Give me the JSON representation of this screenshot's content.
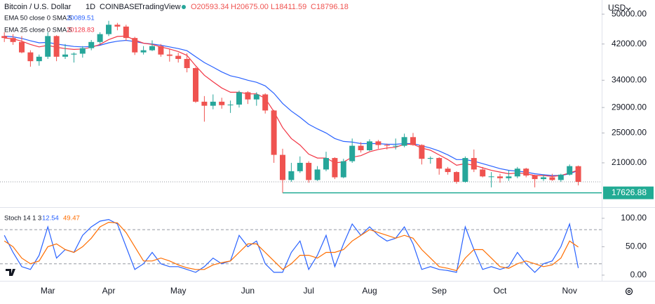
{
  "chart_data": [
    {
      "type": "candlestick",
      "title": "Bitcoin / U.S. Dollar",
      "interval": "1D",
      "exchange": "COINBASE",
      "source": "TradingView",
      "ohlc_labels": [
        "O20593.34",
        "H20675.00",
        "L18411.59",
        "C18796.18"
      ],
      "currency": "USD",
      "categories": [
        null,
        null,
        null,
        null,
        null,
        "Mar",
        null,
        null,
        null,
        null,
        null,
        null,
        "Apr",
        null,
        null,
        null,
        null,
        null,
        null,
        null,
        "May",
        null,
        null,
        null,
        null,
        null,
        null,
        null,
        "Jun",
        null,
        null,
        null,
        null,
        null,
        null,
        "Jul",
        null,
        null,
        null,
        null,
        null,
        null,
        "Aug",
        null,
        null,
        null,
        null,
        null,
        null,
        null,
        "Sep",
        null,
        null,
        null,
        null,
        null,
        null,
        "Oct",
        null,
        null,
        null,
        null,
        null,
        null,
        null,
        "Nov",
        null
      ],
      "open": [
        44000,
        43500,
        42500,
        40000,
        38000,
        39000,
        44000,
        39000,
        39500,
        39700,
        41000,
        42500,
        44500,
        47000,
        46500,
        43500,
        40000,
        40500,
        41500,
        39500,
        39200,
        38500,
        36500,
        30000,
        29300,
        30000,
        29400,
        29500,
        31700,
        30400,
        31300,
        28500,
        22000,
        19000,
        20000,
        21000,
        19000,
        20200,
        21600,
        19300,
        21200,
        23200,
        22600,
        23800,
        23300,
        23200,
        23200,
        24400,
        23300,
        21500,
        21600,
        20300,
        19900,
        18800,
        21600,
        20200,
        19400,
        19400,
        19200,
        19400,
        20300,
        19500,
        19100,
        19300,
        19000,
        19600,
        20593.34
      ],
      "high": [
        45000,
        44500,
        44000,
        40500,
        39500,
        45000,
        44200,
        42000,
        40000,
        41500,
        43000,
        45000,
        48100,
        47500,
        47000,
        43800,
        41500,
        42900,
        42000,
        40800,
        39900,
        39800,
        36700,
        31000,
        31300,
        30700,
        30200,
        32000,
        31900,
        31700,
        31500,
        28600,
        22800,
        21000,
        21800,
        21200,
        20600,
        22400,
        21700,
        21500,
        24200,
        23700,
        24100,
        24000,
        23500,
        24200,
        24900,
        25000,
        23400,
        21800,
        21700,
        20500,
        20000,
        21800,
        22700,
        20500,
        19900,
        19700,
        20100,
        20500,
        20400,
        19600,
        19600,
        19700,
        19700,
        20800,
        20675
      ],
      "low": [
        42500,
        41800,
        39800,
        36800,
        37000,
        38500,
        38000,
        38500,
        37700,
        38800,
        40500,
        42000,
        44000,
        45500,
        42800,
        39400,
        39500,
        40300,
        39000,
        37900,
        37700,
        35600,
        29800,
        26700,
        28700,
        28800,
        28100,
        29000,
        29600,
        29300,
        28000,
        21000,
        17626.88,
        18800,
        19800,
        18700,
        18900,
        20000,
        19100,
        19200,
        21000,
        22300,
        22500,
        22800,
        22700,
        22700,
        23000,
        23200,
        20800,
        20900,
        19600,
        19600,
        18600,
        18700,
        19900,
        19300,
        18200,
        18700,
        18900,
        19200,
        19300,
        18200,
        18900,
        18900,
        18800,
        19500,
        18411.59
      ],
      "close": [
        43500,
        42500,
        40000,
        38000,
        39000,
        44000,
        39000,
        39500,
        39700,
        41000,
        42500,
        44500,
        47000,
        46500,
        43500,
        40000,
        40500,
        41500,
        39500,
        39200,
        38500,
        36500,
        30000,
        29300,
        30000,
        29400,
        29500,
        31700,
        30400,
        31300,
        28500,
        22000,
        19000,
        20000,
        21000,
        19000,
        20200,
        21600,
        19300,
        21200,
        23200,
        22600,
        23800,
        23300,
        23200,
        23200,
        24400,
        23300,
        21500,
        21600,
        20300,
        19900,
        18800,
        21600,
        20200,
        19400,
        19400,
        19200,
        19400,
        20300,
        19500,
        19100,
        19300,
        19000,
        19600,
        20600,
        18796.18
      ],
      "up_color": "#26a69a",
      "down_color": "#ef5350",
      "series": [
        {
          "name": "EMA 50 close 0 SMA 5",
          "color": "#2962ff",
          "last_label": "20089.51",
          "values": [
            44000,
            43800,
            43400,
            42800,
            42300,
            42400,
            42000,
            41700,
            41400,
            41300,
            41400,
            41700,
            42300,
            42700,
            42900,
            42600,
            42200,
            42000,
            41700,
            41300,
            40900,
            40400,
            39000,
            37700,
            36700,
            35700,
            34900,
            34500,
            34000,
            33600,
            32900,
            31500,
            29700,
            28400,
            27400,
            26300,
            25600,
            25000,
            24200,
            23800,
            23700,
            23500,
            23500,
            23500,
            23400,
            23400,
            23500,
            23500,
            23200,
            22900,
            22500,
            22000,
            21400,
            21400,
            21200,
            20900,
            20600,
            20300,
            20100,
            20000,
            19900,
            19700,
            19600,
            19500,
            19500,
            19700,
            20089.51
          ]
        },
        {
          "name": "EMA 25 close 0 SMA 5",
          "color": "#f23645",
          "last_label": "20128.83",
          "values": [
            43500,
            43300,
            42700,
            41900,
            41300,
            41700,
            41200,
            40900,
            40700,
            40800,
            41200,
            41900,
            43100,
            43900,
            44000,
            43000,
            42200,
            41900,
            41300,
            40800,
            40200,
            39300,
            37000,
            35000,
            33700,
            32500,
            31700,
            31700,
            31400,
            31400,
            30600,
            28300,
            25800,
            24200,
            23300,
            22100,
            21600,
            21600,
            21000,
            21100,
            21700,
            21900,
            22400,
            22700,
            22900,
            23000,
            23400,
            23400,
            22900,
            22600,
            22000,
            21400,
            20700,
            20900,
            20700,
            20400,
            20100,
            19900,
            19700,
            19800,
            19700,
            19500,
            19500,
            19400,
            19500,
            19800,
            20128.83
          ]
        }
      ],
      "ylim": [
        16420,
        54300
      ],
      "log_scale": true,
      "yticks": [
        {
          "value": 50000,
          "label": "50000.00"
        },
        {
          "value": 42000,
          "label": "42000.00"
        },
        {
          "value": 34000,
          "label": "34000.00"
        },
        {
          "value": 29000,
          "label": "29000.00"
        },
        {
          "value": 25000,
          "label": "25000.00"
        },
        {
          "value": 21000,
          "label": "21000.00"
        }
      ],
      "hline": {
        "value": 17626.88,
        "label": "17626.88",
        "color": "#22ab94"
      }
    },
    {
      "type": "line",
      "title": "Stoch 14 1 3",
      "series": [
        {
          "color": "#2962ff",
          "last_label": "12.54",
          "values": [
            70,
            40,
            15,
            10,
            35,
            85,
            30,
            45,
            40,
            70,
            85,
            95,
            98,
            90,
            50,
            10,
            20,
            40,
            20,
            15,
            15,
            10,
            5,
            15,
            30,
            20,
            25,
            70,
            50,
            60,
            20,
            5,
            5,
            40,
            60,
            10,
            35,
            70,
            15,
            55,
            90,
            70,
            85,
            70,
            60,
            65,
            85,
            55,
            10,
            15,
            10,
            8,
            5,
            85,
            45,
            10,
            15,
            10,
            15,
            40,
            20,
            5,
            20,
            25,
            50,
            90,
            12.54
          ]
        },
        {
          "color": "#ff6d00",
          "last_label": "49.47",
          "values": [
            60,
            50,
            30,
            20,
            25,
            50,
            55,
            45,
            40,
            50,
            65,
            85,
            93,
            92,
            75,
            50,
            25,
            25,
            30,
            25,
            18,
            13,
            10,
            10,
            18,
            22,
            25,
            40,
            55,
            55,
            40,
            25,
            10,
            20,
            35,
            35,
            30,
            40,
            40,
            45,
            60,
            70,
            80,
            75,
            70,
            65,
            70,
            65,
            45,
            30,
            15,
            12,
            8,
            30,
            45,
            45,
            30,
            15,
            12,
            20,
            25,
            20,
            15,
            18,
            30,
            60,
            49.47
          ]
        }
      ],
      "ylim": [
        -10,
        116
      ],
      "yticks": [
        {
          "value": 100,
          "label": "100.00"
        },
        {
          "value": 50,
          "label": "50.00"
        },
        {
          "value": 0,
          "label": "0.00"
        }
      ],
      "bands": [
        80,
        20
      ]
    }
  ]
}
